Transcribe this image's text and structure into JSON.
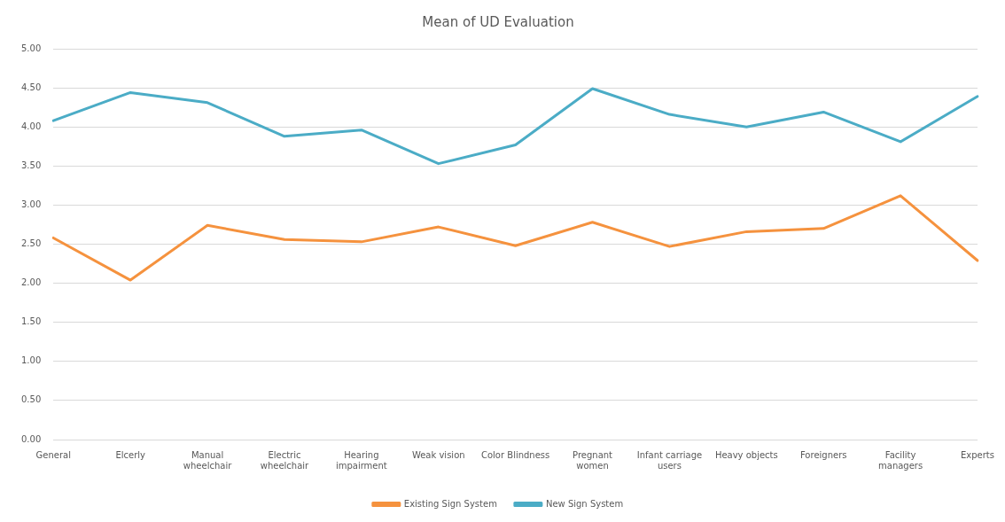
{
  "chart_data": {
    "type": "line",
    "title": "Mean of UD Evaluation",
    "categories": [
      "General",
      "Elcerly",
      "Manual wheelchair",
      "Electric wheelchair",
      "Hearing impairment",
      "Weak vision",
      "Color Blindness",
      "Pregnant women",
      "Infant carriage users",
      "Heavy objects",
      "Foreigners",
      "Facility managers",
      "Experts"
    ],
    "series": [
      {
        "name": "Existing Sign System",
        "color": "#f5923e",
        "values": [
          2.58,
          2.04,
          2.74,
          2.56,
          2.53,
          2.72,
          2.48,
          2.78,
          2.47,
          2.66,
          2.7,
          3.12,
          2.29
        ]
      },
      {
        "name": "New Sign System",
        "color": "#4bacc6",
        "values": [
          4.08,
          4.44,
          4.31,
          3.88,
          3.96,
          3.53,
          3.77,
          4.49,
          4.16,
          4.0,
          4.19,
          3.81,
          4.39
        ]
      }
    ],
    "ylim": [
      0,
      5
    ],
    "yticks": [
      {
        "value": 0,
        "label": "0.00"
      },
      {
        "value": 0.5,
        "label": "0.50"
      },
      {
        "value": 1,
        "label": "1.00"
      },
      {
        "value": 1.5,
        "label": "1.50"
      },
      {
        "value": 2,
        "label": "2.00"
      },
      {
        "value": 2.5,
        "label": "2.50"
      },
      {
        "value": 3,
        "label": "3.00"
      },
      {
        "value": 3.5,
        "label": "3.50"
      },
      {
        "value": 4,
        "label": "4.00"
      },
      {
        "value": 4.5,
        "label": "4.50"
      },
      {
        "value": 5,
        "label": "5.00"
      }
    ],
    "grid": "y",
    "legend": "bottom",
    "marker": "none",
    "line_style": "solid"
  }
}
